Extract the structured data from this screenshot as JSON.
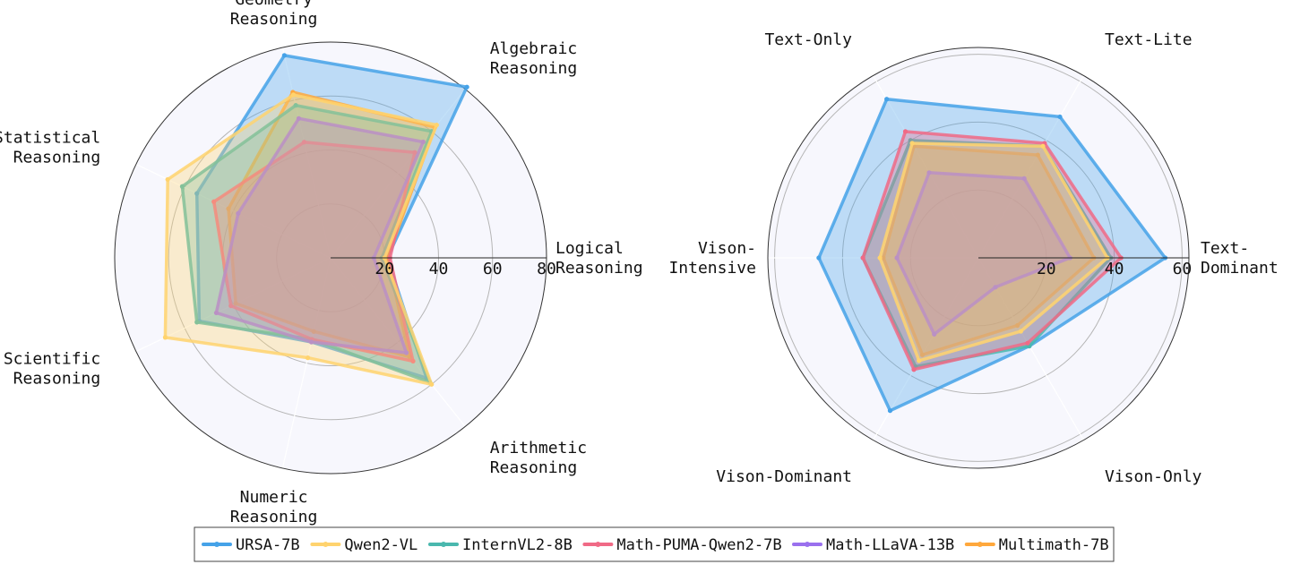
{
  "chart_data": [
    {
      "type": "radar",
      "axes": [
        "Logical\nReasoning",
        "Algebraic\nReasoning",
        "Geometry\nReasoning",
        "Statistical\nReasoning",
        "Scientific\nReasoning",
        "Numeric\nReasoning",
        "Arithmetic\nReasoning"
      ],
      "rmax": 80,
      "ticks": [
        20,
        40,
        60,
        80
      ],
      "grid": true,
      "series": [
        {
          "name": "URSA-7B",
          "values": [
            21,
            81,
            77,
            55,
            54,
            32,
            57
          ]
        },
        {
          "name": "Qwen2-VL",
          "values": [
            20,
            63,
            62,
            67,
            68,
            38,
            60
          ]
        },
        {
          "name": "InternVL2-8B",
          "values": [
            19,
            60,
            58,
            61,
            55,
            31,
            59
          ]
        },
        {
          "name": "Math-PUMA-Qwen2-7B",
          "values": [
            22,
            50,
            44,
            48,
            41,
            31,
            49
          ]
        },
        {
          "name": "Math-LLaVA-13B",
          "values": [
            16,
            55,
            53,
            38,
            47,
            32,
            45
          ]
        },
        {
          "name": "Multimath-7B",
          "values": [
            21,
            62,
            63,
            42,
            39,
            28,
            47
          ]
        }
      ]
    },
    {
      "type": "radar",
      "axes": [
        "Text-\nDominant",
        "Text-Lite",
        "Text-Only",
        "Vison-\nIntensive",
        "Vison-Dominant",
        "Vison-Only"
      ],
      "rmax": 62,
      "ticks": [
        20,
        40,
        60
      ],
      "grid": true,
      "series": [
        {
          "name": "URSA-7B",
          "values": [
            55,
            48,
            54,
            47,
            52,
            30
          ]
        },
        {
          "name": "Qwen2-VL",
          "values": [
            38,
            38,
            39,
            29,
            35,
            25
          ]
        },
        {
          "name": "InternVL2-8B",
          "values": [
            39,
            38,
            40,
            34,
            37,
            30
          ]
        },
        {
          "name": "Math-PUMA-Qwen2-7B",
          "values": [
            42,
            39,
            43,
            34,
            38,
            29
          ]
        },
        {
          "name": "Math-LLaVA-13B",
          "values": [
            27,
            27,
            29,
            24,
            26,
            10
          ]
        },
        {
          "name": "Multimath-7B",
          "values": [
            34,
            35,
            38,
            28,
            33,
            23
          ]
        }
      ]
    }
  ],
  "legend": {
    "position": "bottom-center",
    "items": [
      {
        "name": "URSA-7B",
        "color": "#45a2e8"
      },
      {
        "name": "Qwen2-VL",
        "color": "#ffd36e"
      },
      {
        "name": "InternVL2-8B",
        "color": "#4ab8ae"
      },
      {
        "name": "Math-PUMA-Qwen2-7B",
        "color": "#f06a86"
      },
      {
        "name": "Math-LLaVA-13B",
        "color": "#9a70ee"
      },
      {
        "name": "Multimath-7B",
        "color": "#ffa83c"
      }
    ]
  },
  "colors": {
    "background_fill": "#f7f7fd",
    "grid": "#b5b5b5",
    "outer_ring": "#333333"
  }
}
